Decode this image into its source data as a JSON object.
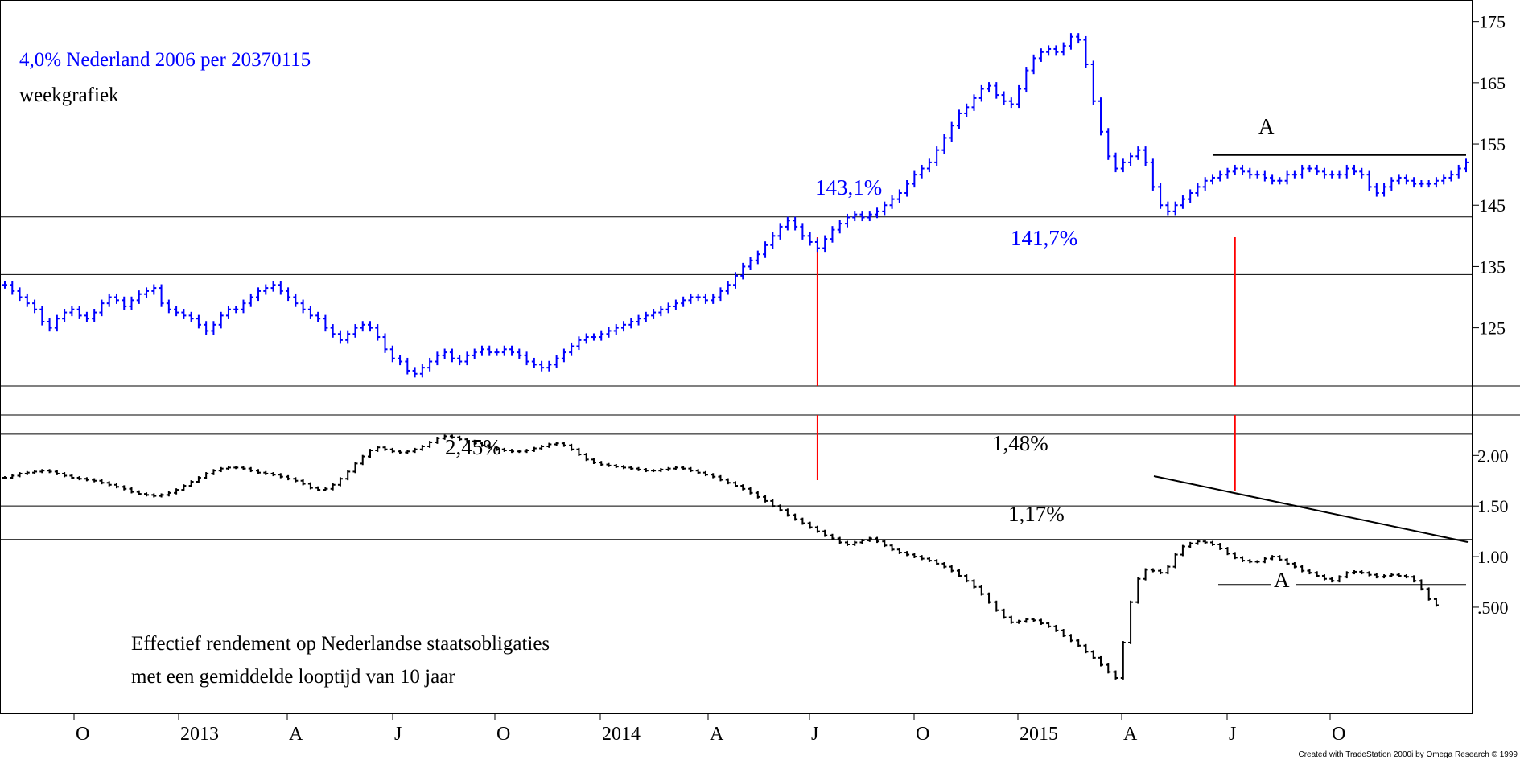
{
  "colors": {
    "price": "#0000ff",
    "yield": "#000000",
    "marker": "#ff0000",
    "title": "#0000ff",
    "text": "#000000",
    "background": "#ffffff"
  },
  "footer": "Created with TradeStation 2000i by Omega Research © 1999",
  "chart_data": [
    {
      "type": "bar",
      "style": "OHLC weekly bars",
      "title": "4,0% Nederland 2006 per 20370115",
      "subtitle": "weekgrafiek",
      "x_ticks": [
        "O",
        "2013",
        "A",
        "J",
        "O",
        "2014",
        "A",
        "J",
        "O",
        "2015",
        "A",
        "J",
        "O"
      ],
      "y_ticks": [
        "175",
        "165",
        "155",
        "145",
        "135",
        "125"
      ],
      "ylim": [
        115.5,
        178.5
      ],
      "grid": false,
      "axis_position": "right",
      "annotations": [
        {
          "text": "143,1%",
          "color": "#0000ff"
        },
        {
          "text": "141,7%",
          "color": "#0000ff"
        },
        {
          "text": "A",
          "color": "#000000"
        }
      ],
      "horizontal_levels": [
        143.1,
        133.7
      ],
      "resistance_A": 153.2,
      "series": [
        {
          "values": [
            132,
            131,
            130,
            129,
            128,
            126,
            125,
            126.5,
            127.5,
            128,
            127,
            126.5,
            127.5,
            129,
            130,
            129.5,
            128.5,
            129.5,
            130.5,
            131,
            131.5,
            129,
            128,
            127.5,
            127,
            126.5,
            125.5,
            124.5,
            125.5,
            127,
            128,
            128,
            129,
            130,
            131,
            131.5,
            132,
            131,
            130,
            129,
            128,
            127,
            126.5,
            125,
            124,
            123,
            124,
            125,
            125.5,
            125,
            123.5,
            121.5,
            120,
            119.5,
            118,
            117.5,
            118.5,
            119.5,
            120.5,
            121,
            120,
            119.5,
            120.5,
            121,
            121.5,
            121,
            121,
            121.5,
            121,
            120.5,
            119.5,
            119,
            118.5,
            119,
            120,
            121,
            122,
            123,
            123.5,
            123.5,
            124,
            124.5,
            125,
            125.5,
            126,
            126.5,
            127,
            127.5,
            128,
            128.5,
            129,
            129.5,
            130,
            130,
            129.5,
            130,
            131,
            132,
            133.5,
            135,
            136,
            137,
            138.5,
            140,
            141.5,
            142.5,
            141.5,
            140,
            139,
            138,
            139.5,
            141,
            142,
            143,
            143.5,
            143,
            143.5,
            144,
            145,
            146,
            147,
            148.5,
            150,
            151,
            152,
            154,
            156,
            158,
            160,
            161,
            162.5,
            164,
            164.5,
            163,
            162,
            161.5,
            164,
            167,
            169,
            170,
            170.5,
            170,
            171,
            172.5,
            172,
            168,
            162,
            157,
            153,
            151,
            152,
            153,
            154,
            152,
            148,
            145,
            144,
            145,
            146,
            147,
            148,
            149,
            149.5,
            150,
            150.5,
            151,
            150.5,
            150,
            150,
            149.5,
            149,
            149,
            150,
            150,
            151,
            151,
            150.5,
            150,
            150,
            150,
            151,
            150.5,
            150,
            148,
            147,
            148,
            149,
            149.5,
            149,
            148.5,
            148.5,
            148.5,
            149,
            149.5,
            150,
            151,
            152
          ]
        }
      ]
    },
    {
      "type": "bar",
      "style": "OHLC weekly bars",
      "title": "Effectief rendement op Nederlandse staatsobligaties",
      "subtitle": "met een gemiddelde looptijd van 10 jaar",
      "y_ticks": [
        "2.00",
        "1.50",
        "1.00",
        ".500"
      ],
      "ylim": [
        -0.55,
        2.4
      ],
      "grid": false,
      "axis_position": "right",
      "annotations": [
        {
          "text": "2,45%",
          "color": "#000000"
        },
        {
          "text": "1,48%",
          "color": "#000000"
        },
        {
          "text": "1,17%",
          "color": "#000000"
        },
        {
          "text": "A",
          "color": "#000000"
        }
      ],
      "horizontal_levels": [
        2.21,
        1.5,
        1.17
      ],
      "support_A": 0.72,
      "series": [
        {
          "values": [
            1.78,
            1.8,
            1.82,
            1.83,
            1.84,
            1.85,
            1.84,
            1.82,
            1.8,
            1.78,
            1.77,
            1.76,
            1.75,
            1.73,
            1.71,
            1.69,
            1.67,
            1.64,
            1.62,
            1.61,
            1.6,
            1.61,
            1.63,
            1.66,
            1.7,
            1.74,
            1.78,
            1.82,
            1.85,
            1.87,
            1.88,
            1.88,
            1.87,
            1.85,
            1.83,
            1.82,
            1.81,
            1.79,
            1.77,
            1.75,
            1.72,
            1.68,
            1.66,
            1.67,
            1.71,
            1.77,
            1.84,
            1.92,
            1.99,
            2.05,
            2.08,
            2.06,
            2.04,
            2.03,
            2.04,
            2.06,
            2.09,
            2.13,
            2.17,
            2.19,
            2.18,
            2.16,
            2.14,
            2.12,
            2.1,
            2.08,
            2.06,
            2.05,
            2.04,
            2.04,
            2.05,
            2.07,
            2.09,
            2.11,
            2.12,
            2.1,
            2.06,
            2.01,
            1.96,
            1.93,
            1.91,
            1.9,
            1.89,
            1.88,
            1.87,
            1.86,
            1.85,
            1.85,
            1.86,
            1.87,
            1.88,
            1.87,
            1.85,
            1.83,
            1.81,
            1.79,
            1.76,
            1.73,
            1.7,
            1.67,
            1.63,
            1.59,
            1.55,
            1.5,
            1.46,
            1.41,
            1.37,
            1.33,
            1.29,
            1.25,
            1.21,
            1.18,
            1.14,
            1.12,
            1.14,
            1.16,
            1.18,
            1.15,
            1.11,
            1.07,
            1.04,
            1.02,
            1.0,
            0.98,
            0.96,
            0.93,
            0.9,
            0.86,
            0.81,
            0.76,
            0.7,
            0.63,
            0.55,
            0.47,
            0.4,
            0.35,
            0.36,
            0.38,
            0.37,
            0.34,
            0.31,
            0.27,
            0.22,
            0.17,
            0.12,
            0.06,
            0.0,
            -0.07,
            -0.14,
            -0.2,
            0.15,
            0.55,
            0.78,
            0.87,
            0.86,
            0.84,
            0.9,
            1.02,
            1.1,
            1.13,
            1.15,
            1.14,
            1.12,
            1.08,
            1.03,
            0.99,
            0.96,
            0.95,
            0.95,
            0.98,
            1.0,
            0.97,
            0.93,
            0.9,
            0.86,
            0.84,
            0.81,
            0.78,
            0.76,
            0.8,
            0.84,
            0.85,
            0.84,
            0.82,
            0.8,
            0.81,
            0.82,
            0.81,
            0.8,
            0.76,
            0.68,
            0.58,
            0.52
          ]
        }
      ]
    }
  ]
}
